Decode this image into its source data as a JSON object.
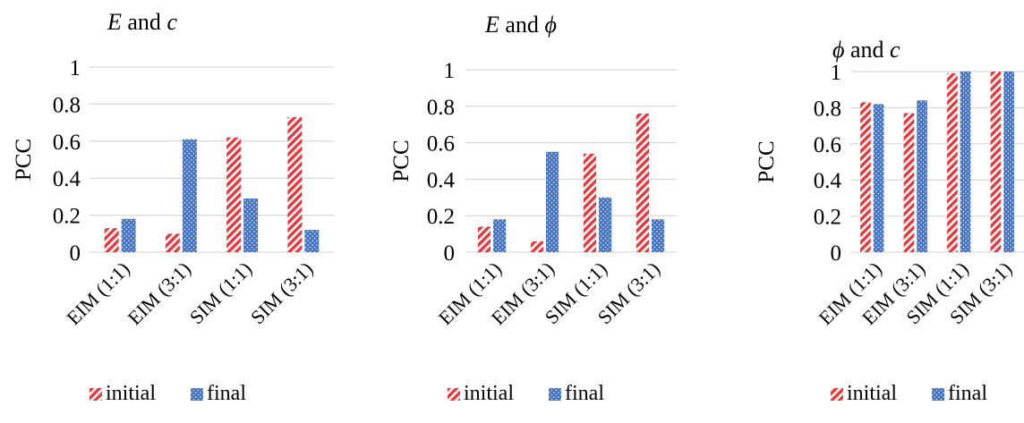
{
  "chart_data": [
    {
      "type": "bar",
      "title": "E and c",
      "title_parts": [
        "E",
        " and ",
        "c"
      ],
      "ylabel": "PCC",
      "ylim": [
        0,
        1
      ],
      "yticks": [
        "0",
        "0.2",
        "0.4",
        "0.6",
        "0.8",
        "1"
      ],
      "categories": [
        "EIM (1:1)",
        "EIM (3:1)",
        "SIM (1:1)",
        "SIM (3:1)"
      ],
      "series": [
        {
          "name": "initial",
          "values": [
            0.13,
            0.1,
            0.62,
            0.73
          ]
        },
        {
          "name": "final",
          "values": [
            0.18,
            0.61,
            0.29,
            0.12
          ]
        }
      ],
      "grid": true,
      "legend": "bottom"
    },
    {
      "type": "bar",
      "title": "E and ϕ",
      "title_parts": [
        "E",
        " and ",
        "ϕ"
      ],
      "ylabel": "PCC",
      "ylim": [
        0,
        1
      ],
      "yticks": [
        "0",
        "0.2",
        "0.4",
        "0.6",
        "0.8",
        "1"
      ],
      "categories": [
        "EIM (1:1)",
        "EIM (3:1)",
        "SIM (1:1)",
        "SIM (3:1)"
      ],
      "series": [
        {
          "name": "initial",
          "values": [
            0.14,
            0.06,
            0.54,
            0.76
          ]
        },
        {
          "name": "final",
          "values": [
            0.18,
            0.55,
            0.3,
            0.18
          ]
        }
      ],
      "grid": true,
      "legend": "bottom"
    },
    {
      "type": "bar",
      "title": "ϕ and c",
      "title_parts": [
        "ϕ",
        " and ",
        "c"
      ],
      "ylabel": "PCC",
      "ylim": [
        0,
        1
      ],
      "yticks": [
        "0",
        "0.2",
        "0.4",
        "0.6",
        "0.8",
        "1"
      ],
      "categories": [
        "EIM (1:1)",
        "EIM (3:1)",
        "SIM (1:1)",
        "SIM (3:1)"
      ],
      "series": [
        {
          "name": "initial",
          "values": [
            0.83,
            0.77,
            0.99,
            1.0
          ]
        },
        {
          "name": "final",
          "values": [
            0.82,
            0.84,
            1.0,
            1.0
          ]
        }
      ],
      "grid": true,
      "legend": "bottom"
    }
  ],
  "colors": {
    "initial": "#e8383d",
    "final": "#4472c4",
    "grid": "#d9d9d9"
  }
}
